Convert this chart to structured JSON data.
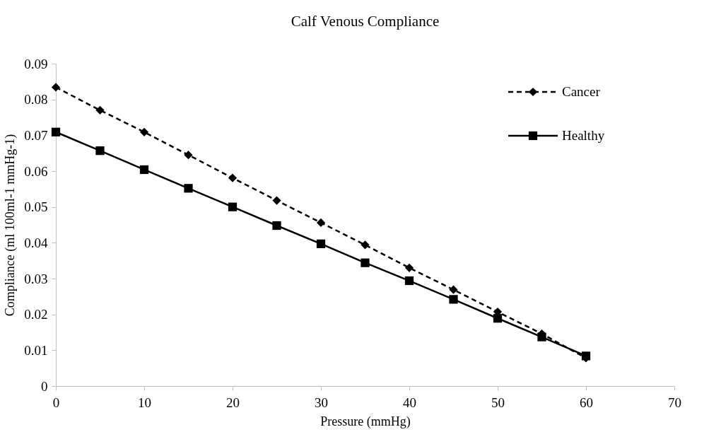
{
  "chart_data": {
    "type": "line",
    "title": "Calf Venous Compliance",
    "xlabel": "Pressure (mmHg)",
    "ylabel": "Compliance (ml 100ml-1 mmHg-1)",
    "x": [
      0,
      5,
      10,
      15,
      20,
      25,
      30,
      35,
      40,
      45,
      50,
      55,
      60
    ],
    "series": [
      {
        "name": "Cancer",
        "color": "#000000",
        "marker": "diamond",
        "line_style": "dashed",
        "values": [
          0.0834,
          0.077,
          0.0709,
          0.0645,
          0.0581,
          0.0518,
          0.0456,
          0.0394,
          0.033,
          0.0269,
          0.0207,
          0.0146,
          0.0078
        ]
      },
      {
        "name": "Healthy",
        "color": "#000000",
        "marker": "square",
        "line_style": "solid",
        "values": [
          0.0709,
          0.0657,
          0.0604,
          0.0552,
          0.05,
          0.0448,
          0.0397,
          0.0344,
          0.0294,
          0.0242,
          0.0189,
          0.0137,
          0.0084
        ]
      }
    ],
    "xlim": [
      0,
      70
    ],
    "xticks": [
      0,
      10,
      20,
      30,
      40,
      50,
      60,
      70
    ],
    "ylim": [
      0,
      0.09
    ],
    "yticks": [
      0,
      0.01,
      0.02,
      0.03,
      0.04,
      0.05,
      0.06,
      0.07,
      0.08,
      0.09
    ],
    "grid": false,
    "legend": "top right"
  }
}
